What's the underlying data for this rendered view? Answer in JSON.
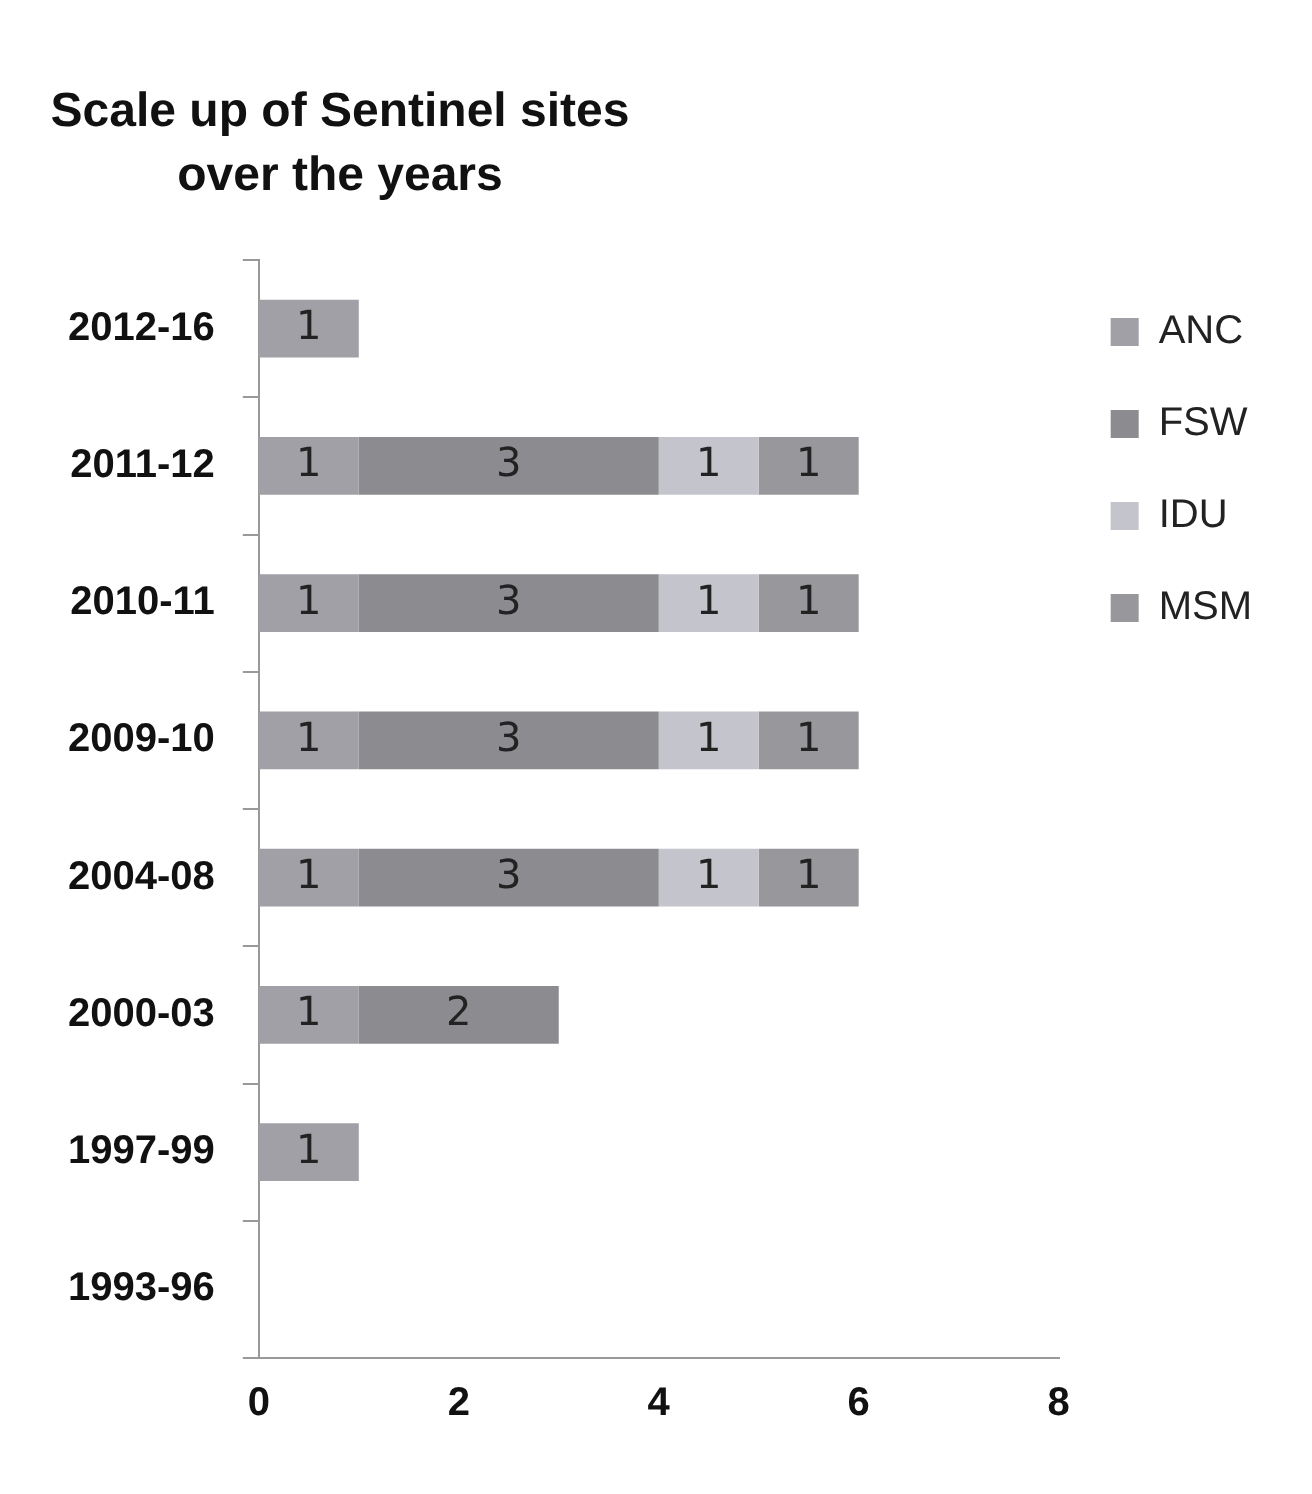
{
  "chart_data": {
    "type": "bar",
    "orientation": "horizontal",
    "stacked": true,
    "title": "Scale up of Sentinel sites over the years",
    "categories": [
      "2012-16",
      "2011-12",
      "2010-11",
      "2009-10",
      "2004-08",
      "2000-03",
      "1997-99",
      "1993-96"
    ],
    "series": [
      {
        "name": "ANC",
        "color": "#a0a0a6",
        "values": [
          1,
          1,
          1,
          1,
          1,
          1,
          1,
          null
        ]
      },
      {
        "name": "FSW",
        "color": "#8c8c90",
        "values": [
          null,
          3,
          3,
          3,
          3,
          2,
          null,
          null
        ]
      },
      {
        "name": "IDU",
        "color": "#c4c4cc",
        "values": [
          null,
          1,
          1,
          1,
          1,
          null,
          null,
          null
        ]
      },
      {
        "name": "MSM",
        "color": "#98989c",
        "values": [
          null,
          1,
          1,
          1,
          1,
          null,
          null,
          null
        ]
      }
    ],
    "xlim": [
      0,
      8
    ],
    "xticks": [
      0,
      2,
      4,
      6,
      8
    ],
    "grid": false,
    "legend": "right",
    "data_labels": true
  }
}
